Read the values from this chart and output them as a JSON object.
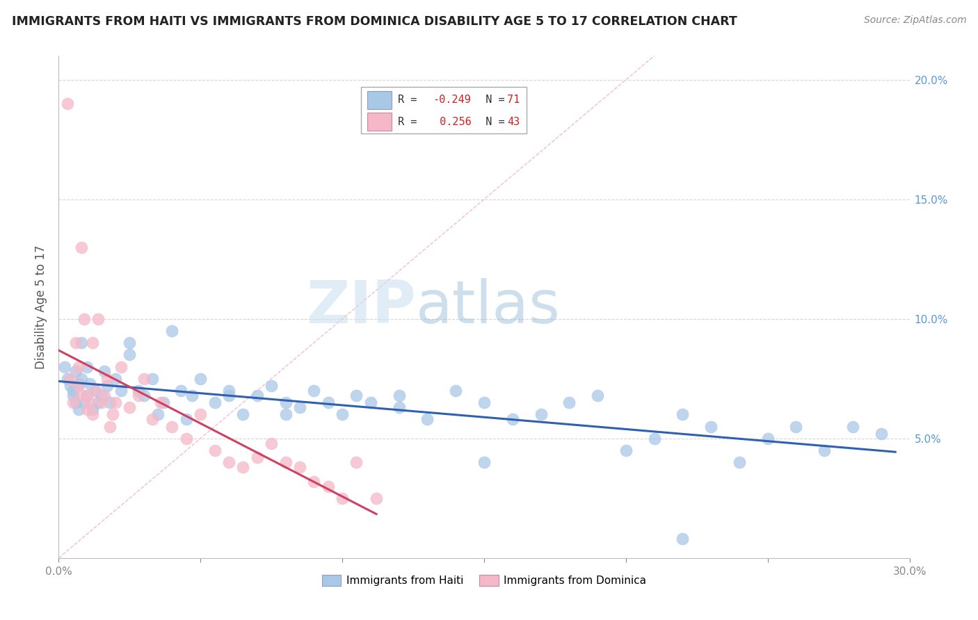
{
  "title": "IMMIGRANTS FROM HAITI VS IMMIGRANTS FROM DOMINICA DISABILITY AGE 5 TO 17 CORRELATION CHART",
  "source": "Source: ZipAtlas.com",
  "ylabel": "Disability Age 5 to 17",
  "xlim": [
    0.0,
    0.3
  ],
  "ylim": [
    0.0,
    0.21
  ],
  "xtick_positions": [
    0.0,
    0.05,
    0.1,
    0.15,
    0.2,
    0.25,
    0.3
  ],
  "xticklabels": [
    "0.0%",
    "",
    "",
    "",
    "",
    "",
    "30.0%"
  ],
  "ytick_positions": [
    0.05,
    0.1,
    0.15,
    0.2
  ],
  "ytick_labels_right": [
    "5.0%",
    "10.0%",
    "15.0%",
    "20.0%"
  ],
  "haiti_color": "#a8c8e8",
  "dominica_color": "#f5b8c8",
  "haiti_line_color": "#3060b0",
  "dominica_line_color": "#d04060",
  "haiti_R": -0.249,
  "haiti_N": 71,
  "dominica_R": 0.256,
  "dominica_N": 43,
  "haiti_label": "Immigrants from Haiti",
  "dominica_label": "Immigrants from Dominica",
  "watermark_zip": "ZIP",
  "watermark_atlas": "atlas",
  "background_color": "#ffffff",
  "grid_color": "#cccccc",
  "legend_R1_color": "#6699cc",
  "legend_R2_color": "#dd7799",
  "legend_R1_text_color": "#dd3333",
  "legend_R2_text_color": "#dd3333",
  "legend_N_color": "#dd3333",
  "haiti_x": [
    0.002,
    0.003,
    0.004,
    0.005,
    0.005,
    0.006,
    0.006,
    0.007,
    0.007,
    0.008,
    0.008,
    0.009,
    0.01,
    0.01,
    0.011,
    0.012,
    0.013,
    0.014,
    0.015,
    0.016,
    0.017,
    0.018,
    0.02,
    0.022,
    0.025,
    0.028,
    0.03,
    0.033,
    0.037,
    0.04,
    0.043,
    0.047,
    0.05,
    0.055,
    0.06,
    0.065,
    0.07,
    0.075,
    0.08,
    0.085,
    0.09,
    0.095,
    0.1,
    0.105,
    0.11,
    0.12,
    0.13,
    0.14,
    0.15,
    0.16,
    0.17,
    0.18,
    0.19,
    0.2,
    0.21,
    0.22,
    0.23,
    0.24,
    0.25,
    0.26,
    0.27,
    0.28,
    0.025,
    0.035,
    0.045,
    0.06,
    0.08,
    0.12,
    0.15,
    0.22,
    0.29
  ],
  "haiti_y": [
    0.08,
    0.075,
    0.072,
    0.07,
    0.068,
    0.078,
    0.065,
    0.073,
    0.062,
    0.09,
    0.075,
    0.065,
    0.08,
    0.068,
    0.073,
    0.062,
    0.07,
    0.065,
    0.068,
    0.078,
    0.072,
    0.065,
    0.075,
    0.07,
    0.085,
    0.07,
    0.068,
    0.075,
    0.065,
    0.095,
    0.07,
    0.068,
    0.075,
    0.065,
    0.07,
    0.06,
    0.068,
    0.072,
    0.065,
    0.063,
    0.07,
    0.065,
    0.06,
    0.068,
    0.065,
    0.068,
    0.058,
    0.07,
    0.065,
    0.058,
    0.06,
    0.065,
    0.068,
    0.045,
    0.05,
    0.06,
    0.055,
    0.04,
    0.05,
    0.055,
    0.045,
    0.055,
    0.09,
    0.06,
    0.058,
    0.068,
    0.06,
    0.063,
    0.04,
    0.008,
    0.052
  ],
  "dominica_x": [
    0.003,
    0.004,
    0.005,
    0.006,
    0.007,
    0.007,
    0.008,
    0.008,
    0.009,
    0.01,
    0.01,
    0.011,
    0.012,
    0.012,
    0.013,
    0.014,
    0.015,
    0.016,
    0.017,
    0.018,
    0.019,
    0.02,
    0.022,
    0.025,
    0.028,
    0.03,
    0.033,
    0.036,
    0.04,
    0.045,
    0.05,
    0.055,
    0.06,
    0.065,
    0.07,
    0.075,
    0.08,
    0.085,
    0.09,
    0.095,
    0.1,
    0.105,
    0.112
  ],
  "dominica_y": [
    0.19,
    0.075,
    0.065,
    0.09,
    0.072,
    0.08,
    0.13,
    0.068,
    0.1,
    0.068,
    0.062,
    0.065,
    0.06,
    0.09,
    0.07,
    0.1,
    0.065,
    0.068,
    0.075,
    0.055,
    0.06,
    0.065,
    0.08,
    0.063,
    0.068,
    0.075,
    0.058,
    0.065,
    0.055,
    0.05,
    0.06,
    0.045,
    0.04,
    0.038,
    0.042,
    0.048,
    0.04,
    0.038,
    0.032,
    0.03,
    0.025,
    0.04,
    0.025
  ],
  "ref_line_x": [
    0.0,
    0.21
  ],
  "ref_line_y": [
    0.0,
    0.21
  ]
}
